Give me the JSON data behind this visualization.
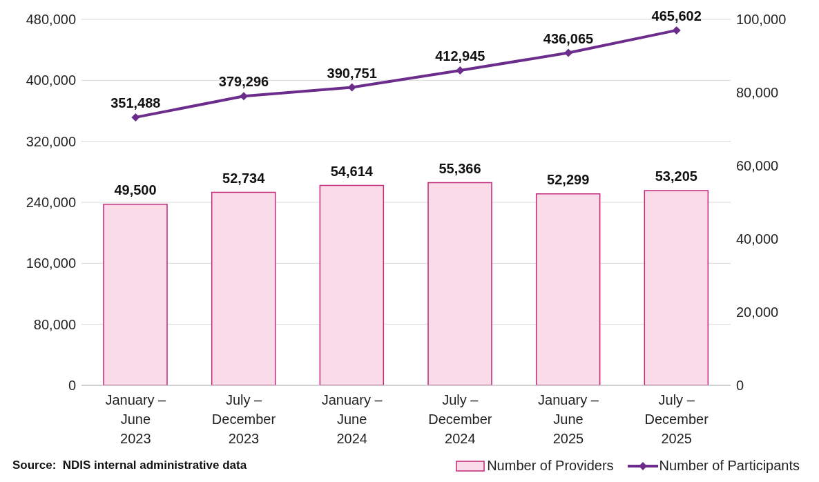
{
  "chart_data": {
    "type": "bar",
    "categories": [
      "January –\nJune\n2023",
      "July –\nDecember\n2023",
      "January –\nJune\n2024",
      "July –\nDecember\n2024",
      "January –\nJune\n2025",
      "July –\nDecember\n2025"
    ],
    "series": [
      {
        "name": "Number of Providers",
        "axis": "y2",
        "color": "#c0267a",
        "values": [
          49500,
          52734,
          54614,
          55366,
          52299,
          53205
        ],
        "value_labels": [
          "49,500",
          "52,734",
          "54,614",
          "55,366",
          "52,299",
          "53,205"
        ]
      },
      {
        "name": "Number of Participants",
        "type": "line",
        "axis": "y",
        "color": "#6b2c8c",
        "values": [
          351488,
          379296,
          390751,
          412945,
          436065,
          465602
        ],
        "value_labels": [
          "351,488",
          "379,296",
          "390,751",
          "412,945",
          "436,065",
          "465,602"
        ]
      }
    ],
    "ylim": [
      0,
      480000
    ],
    "yticks": [
      0,
      {
        "value": 80000,
        "label": "80,000"
      },
      {
        "value": 160000,
        "label": "160,000"
      },
      {
        "value": 240000,
        "label": "240,000"
      },
      {
        "value": 320000,
        "label": "320,000"
      },
      {
        "value": 400000,
        "label": "400,000"
      },
      {
        "value": 480000,
        "label": "480,000"
      }
    ],
    "y2lim": [
      0,
      100000
    ],
    "y2ticks": [
      0,
      {
        "value": 20000,
        "label": "20,000"
      },
      {
        "value": 40000,
        "label": "40,000"
      },
      {
        "value": 60000,
        "label": "60,000"
      },
      {
        "value": 80000,
        "label": "80,000"
      },
      {
        "value": 100000,
        "label": "100,000"
      }
    ],
    "grid": "y",
    "legend": "bottom right",
    "marker": "diamond",
    "line_style": "solid",
    "annotations": [
      "Source:  NDIS internal administrative data"
    ]
  }
}
